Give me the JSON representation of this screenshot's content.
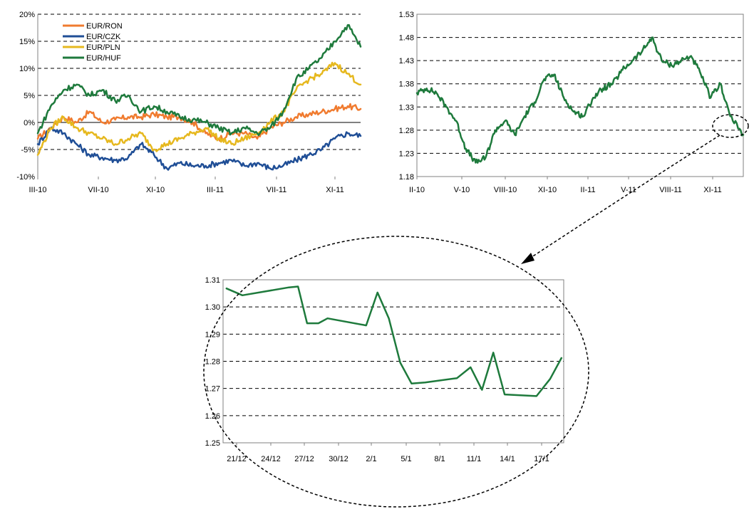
{
  "chart_data": [
    {
      "type": "line",
      "title": "",
      "xlabel": "",
      "ylabel": "",
      "ylim": [
        -0.1,
        0.2
      ],
      "y_tick_labels": [
        "20%",
        "15%",
        "10%",
        "5%",
        "0%",
        "-5%",
        "-10%"
      ],
      "y_ticks": [
        0.2,
        0.15,
        0.1,
        0.05,
        0.0,
        -0.05,
        -0.1
      ],
      "x_tick_labels": [
        "III-10",
        "VII-10",
        "XI-10",
        "III-11",
        "VII-11",
        "XI-11"
      ],
      "grid": "horizontal-dashed",
      "legend_position": "top-left",
      "series": [
        {
          "name": "EUR/RON",
          "color": "#F07B2F",
          "x": [
            0,
            4,
            8,
            12,
            16,
            20,
            24,
            28,
            32,
            36,
            40,
            44,
            48,
            52,
            56,
            60,
            64,
            68,
            72,
            76,
            80,
            84,
            88,
            92,
            96,
            100
          ],
          "values": [
            -0.03,
            -0.01,
            0.01,
            0.0,
            0.02,
            0.0,
            0.005,
            0.01,
            0.01,
            0.015,
            0.01,
            0.01,
            0.0,
            -0.02,
            -0.03,
            -0.02,
            -0.02,
            -0.03,
            -0.01,
            0.0,
            0.01,
            0.015,
            0.02,
            0.025,
            0.03,
            0.025
          ]
        },
        {
          "name": "EUR/CZK",
          "color": "#1F4E96",
          "x": [
            0,
            4,
            8,
            12,
            16,
            20,
            24,
            28,
            32,
            36,
            40,
            44,
            48,
            52,
            56,
            60,
            64,
            68,
            72,
            76,
            80,
            84,
            88,
            92,
            96,
            100
          ],
          "values": [
            -0.04,
            -0.01,
            -0.02,
            -0.04,
            -0.06,
            -0.065,
            -0.07,
            -0.065,
            -0.04,
            -0.06,
            -0.085,
            -0.075,
            -0.08,
            -0.08,
            -0.075,
            -0.07,
            -0.08,
            -0.075,
            -0.085,
            -0.08,
            -0.07,
            -0.06,
            -0.05,
            -0.03,
            -0.02,
            -0.025
          ]
        },
        {
          "name": "EUR/PLN",
          "color": "#E6B81E",
          "x": [
            0,
            4,
            8,
            12,
            16,
            20,
            24,
            28,
            32,
            36,
            40,
            44,
            48,
            52,
            56,
            60,
            64,
            68,
            72,
            76,
            80,
            84,
            88,
            92,
            96,
            100
          ],
          "values": [
            -0.06,
            -0.01,
            0.01,
            -0.01,
            -0.02,
            -0.03,
            -0.04,
            -0.03,
            -0.02,
            -0.05,
            -0.04,
            -0.03,
            -0.02,
            -0.01,
            -0.03,
            -0.04,
            -0.03,
            -0.02,
            0.0,
            0.02,
            0.06,
            0.08,
            0.09,
            0.11,
            0.09,
            0.07
          ]
        },
        {
          "name": "EUR/HUF",
          "color": "#1E7A3C",
          "x": [
            0,
            4,
            8,
            12,
            16,
            20,
            24,
            28,
            32,
            36,
            40,
            44,
            48,
            52,
            56,
            60,
            64,
            68,
            72,
            76,
            80,
            84,
            88,
            92,
            96,
            100
          ],
          "values": [
            -0.02,
            0.03,
            0.06,
            0.07,
            0.05,
            0.06,
            0.04,
            0.05,
            0.02,
            0.03,
            0.02,
            0.01,
            0.005,
            0.0,
            -0.01,
            -0.02,
            -0.01,
            -0.02,
            -0.01,
            0.02,
            0.08,
            0.1,
            0.12,
            0.15,
            0.18,
            0.14
          ]
        }
      ]
    },
    {
      "type": "line",
      "title": "",
      "xlabel": "",
      "ylabel": "",
      "ylim": [
        1.18,
        1.53
      ],
      "y_tick_labels": [
        "1.53",
        "1.48",
        "1.43",
        "1.38",
        "1.33",
        "1.28",
        "1.23",
        "1.18"
      ],
      "y_ticks": [
        1.53,
        1.48,
        1.43,
        1.38,
        1.33,
        1.28,
        1.23,
        1.18
      ],
      "x_tick_labels": [
        "II-10",
        "V-10",
        "VIII-10",
        "XI-10",
        "II-11",
        "V-11",
        "VIII-11",
        "XI-11"
      ],
      "grid": "horizontal-dashed",
      "series": [
        {
          "name": "",
          "color": "#1E7A3C",
          "x": [
            0,
            3,
            6,
            9,
            12,
            15,
            18,
            21,
            24,
            27,
            30,
            33,
            36,
            39,
            42,
            45,
            48,
            51,
            54,
            57,
            60,
            63,
            66,
            69,
            72,
            75,
            78,
            81,
            84,
            87,
            90,
            93,
            96,
            100
          ],
          "values": [
            1.36,
            1.37,
            1.36,
            1.33,
            1.3,
            1.24,
            1.21,
            1.22,
            1.28,
            1.3,
            1.27,
            1.31,
            1.34,
            1.39,
            1.4,
            1.35,
            1.32,
            1.31,
            1.35,
            1.37,
            1.38,
            1.41,
            1.43,
            1.45,
            1.48,
            1.43,
            1.42,
            1.43,
            1.44,
            1.4,
            1.35,
            1.38,
            1.31,
            1.27
          ]
        }
      ]
    },
    {
      "type": "line",
      "title": "",
      "xlabel": "",
      "ylabel": "",
      "ylim": [
        1.25,
        1.31
      ],
      "y_tick_labels": [
        "1.31",
        "1.30",
        "1.29",
        "1.28",
        "1.27",
        "1.26",
        "1.25"
      ],
      "y_ticks": [
        1.31,
        1.3,
        1.29,
        1.28,
        1.27,
        1.26,
        1.25
      ],
      "x_tick_labels": [
        "21/12",
        "24/12",
        "27/12",
        "30/12",
        "2/1",
        "5/1",
        "8/1",
        "11/1",
        "14/1",
        "17/1"
      ],
      "grid": "horizontal-dashed",
      "series": [
        {
          "name": "",
          "color": "#1E7A3C",
          "x": [
            21.3,
            22.7,
            26.8,
            27.6,
            28.4,
            29.4,
            30.2,
            33.6,
            34.6,
            35.6,
            36.6,
            37.6,
            38.8,
            41.6,
            42.8,
            43.8,
            44.8,
            45.8,
            48.6,
            49.8,
            50.8
          ],
          "values": [
            1.3068,
            1.3043,
            1.3072,
            1.3075,
            1.294,
            1.294,
            1.2958,
            1.2932,
            1.3053,
            1.2958,
            1.2795,
            1.2718,
            1.2722,
            1.2738,
            1.2778,
            1.2695,
            1.2832,
            1.2678,
            1.2672,
            1.2735,
            1.2812
          ]
        }
      ]
    }
  ],
  "legend": {
    "items": [
      {
        "label": "EUR/RON",
        "color": "#F07B2F"
      },
      {
        "label": "EUR/CZK",
        "color": "#1F4E96"
      },
      {
        "label": "EUR/PLN",
        "color": "#E6B81E"
      },
      {
        "label": "EUR/HUF",
        "color": "#1E7A3C"
      }
    ]
  }
}
